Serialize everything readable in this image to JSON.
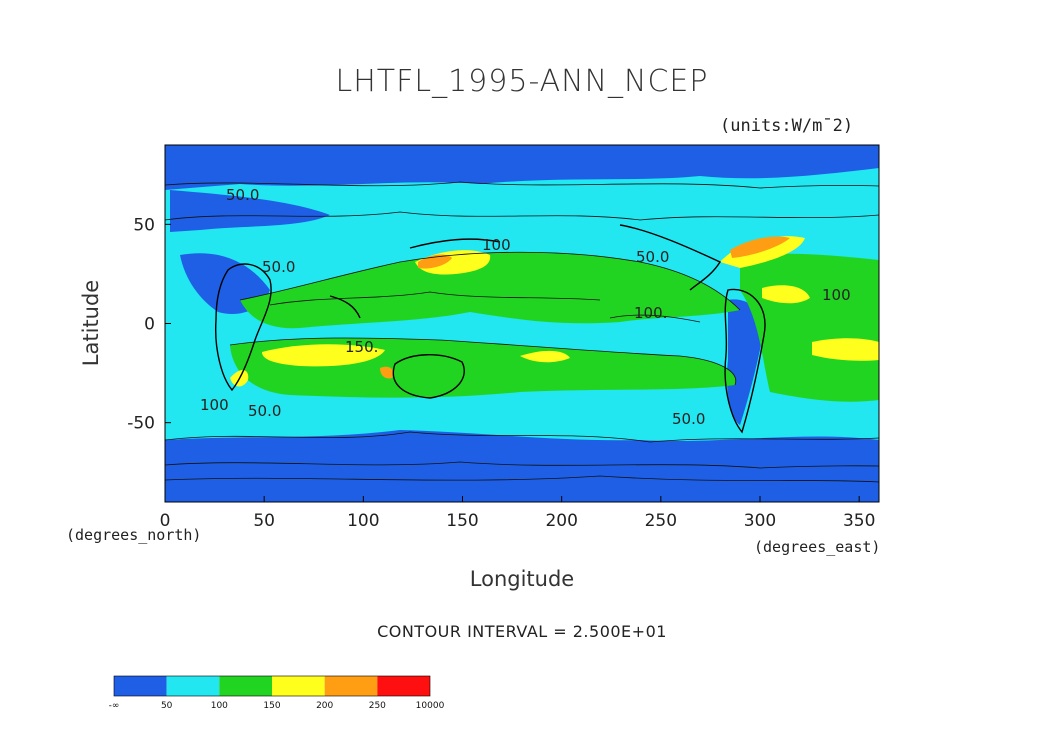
{
  "chart_data": {
    "type": "heatmap",
    "title": "LHTFL_1995-ANN_NCEP",
    "units": "(units:W/m¯2)",
    "xlabel": "Longitude",
    "ylabel": "Latitude",
    "xunits": "(degrees_east)",
    "yunits": "(degrees_north)",
    "xlim": [
      0,
      360
    ],
    "ylim": [
      -90,
      90
    ],
    "xticks": [
      0,
      50,
      100,
      150,
      200,
      250,
      300,
      350
    ],
    "yticks": [
      50,
      0,
      -50
    ],
    "contour_interval_text": "CONTOUR INTERVAL = 2.500E+01",
    "contour_labels": [
      "50.0",
      "50.0",
      "100",
      "50.0",
      "100.",
      "150.",
      "100",
      "50.0",
      "100",
      "50.0"
    ],
    "colorbar": {
      "levels": [
        "-∞",
        "50",
        "100",
        "150",
        "200",
        "250",
        "10000"
      ],
      "colors": [
        "#1e5fe6",
        "#22e6f0",
        "#22d422",
        "#ffff1e",
        "#ff9e12",
        "#ff1010"
      ]
    },
    "grid": false
  },
  "colors": {
    "ocean_low": "#1e5fe6",
    "band_50_100": "#22e6f0",
    "band_100_150": "#22d422",
    "band_150_200": "#ffff1e",
    "band_200_250": "#ff9e12",
    "band_250_up": "#ff1010"
  }
}
